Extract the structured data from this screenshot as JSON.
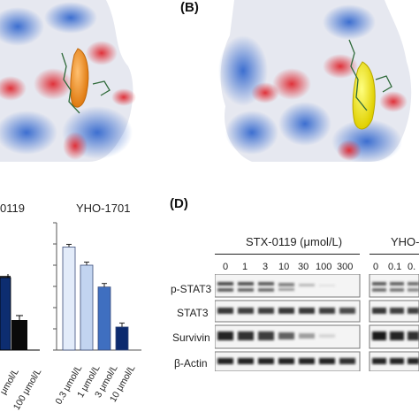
{
  "panel_b": {
    "letter": "(B)"
  },
  "panel_c": {
    "title_left_fragment": "0119",
    "title_right": "YHO-1701",
    "left_tick_fragments": [
      "μmol/L",
      "100 μmol/L"
    ],
    "right_ticks": [
      "0.3 μmol/L",
      "1 μmol/L",
      "3 μmol/L",
      "10 μmol/L"
    ]
  },
  "panel_d": {
    "letter": "(D)",
    "group_left": "STX-0119 (μmol/L)",
    "group_right_fragment": "YHO-",
    "conc_left": [
      "0",
      "1",
      "3",
      "10",
      "30",
      "100",
      "300"
    ],
    "conc_right": [
      "0",
      "0.1",
      "0."
    ],
    "rows": [
      "p-STAT3",
      "STAT3",
      "Survivin",
      "β-Actin"
    ]
  },
  "chart_data": {
    "type": "bar",
    "title": "YHO-1701",
    "categories": [
      "0.3 μmol/L",
      "1 μmol/L",
      "3 μmol/L",
      "10 μmol/L"
    ],
    "values": [
      0.85,
      0.7,
      0.52,
      0.19
    ],
    "colors": [
      "#e3ecfa",
      "#c2d4f0",
      "#3f6fc0",
      "#0c2a6e"
    ],
    "ylim": [
      0,
      1.05
    ]
  }
}
